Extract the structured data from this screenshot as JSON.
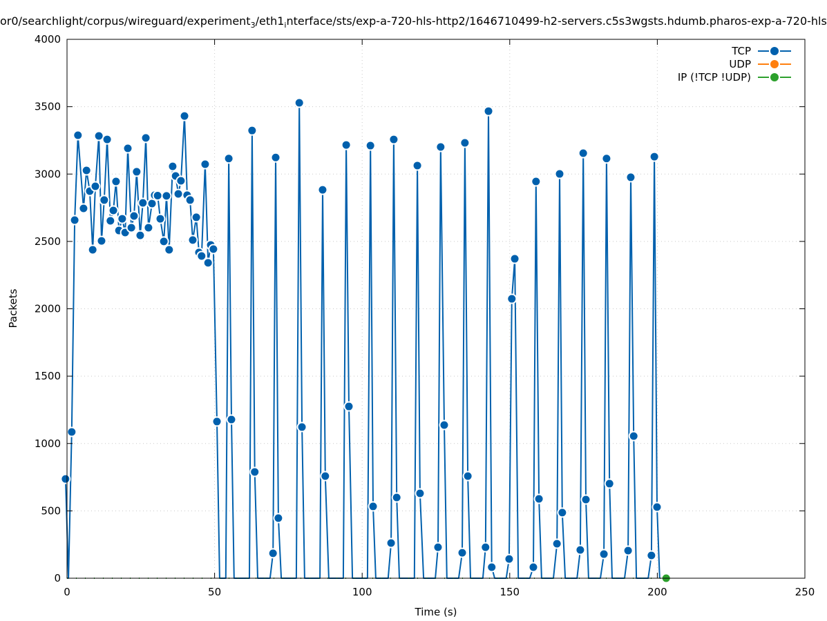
{
  "chart_data": {
    "type": "line",
    "title_parts": [
      {
        "text": "or0/searchlight/corpus/wireguard/experiment",
        "sub": false
      },
      {
        "text": "3",
        "sub": true
      },
      {
        "text": "/eth1",
        "sub": false
      },
      {
        "text": "i",
        "sub": true
      },
      {
        "text": "nterface/sts/exp-a-720-hls-http2/1646710499-h2-servers.c5s3wgsts.hdumb.pharos-exp-a-720-hls",
        "sub": false
      }
    ],
    "xlabel": "Time (s)",
    "ylabel": "Packets",
    "xlim": [
      0,
      250
    ],
    "ylim": [
      0,
      4000
    ],
    "xticks": [
      0,
      50,
      100,
      150,
      200,
      250
    ],
    "yticks": [
      0,
      500,
      1000,
      1500,
      2000,
      2500,
      3000,
      3500,
      4000
    ],
    "grid": true,
    "legend_position": "top-right",
    "series": [
      {
        "name": "TCP",
        "color": "#0060ad",
        "points": [
          [
            -0.5,
            737
          ],
          [
            0.5,
            0
          ],
          [
            1.6,
            1086
          ],
          [
            2.6,
            2658
          ],
          [
            3.7,
            3288
          ],
          [
            5.6,
            2745
          ],
          [
            6.6,
            3027
          ],
          [
            7.7,
            2873
          ],
          [
            8.7,
            2438
          ],
          [
            9.6,
            2909
          ],
          [
            10.8,
            3283
          ],
          [
            11.7,
            2504
          ],
          [
            12.6,
            2807
          ],
          [
            13.6,
            3257
          ],
          [
            14.7,
            2653
          ],
          [
            15.7,
            2730
          ],
          [
            16.6,
            2945
          ],
          [
            17.6,
            2581
          ],
          [
            18.7,
            2668
          ],
          [
            19.7,
            2566
          ],
          [
            20.6,
            3191
          ],
          [
            21.8,
            2602
          ],
          [
            22.7,
            2689
          ],
          [
            23.6,
            3017
          ],
          [
            24.8,
            2545
          ],
          [
            25.7,
            2786
          ],
          [
            26.7,
            3268
          ],
          [
            27.6,
            2602
          ],
          [
            28.8,
            2781
          ],
          [
            29.7,
            2843
          ],
          [
            30.7,
            2840
          ],
          [
            31.6,
            2668
          ],
          [
            32.8,
            2500
          ],
          [
            33.7,
            2838
          ],
          [
            34.6,
            2438
          ],
          [
            35.8,
            3057
          ],
          [
            36.8,
            2986
          ],
          [
            37.7,
            2853
          ],
          [
            38.6,
            2950
          ],
          [
            39.8,
            3431
          ],
          [
            40.7,
            2843
          ],
          [
            41.7,
            2807
          ],
          [
            42.6,
            2510
          ],
          [
            43.8,
            2679
          ],
          [
            44.7,
            2418
          ],
          [
            45.6,
            2392
          ],
          [
            46.8,
            3073
          ],
          [
            47.8,
            2341
          ],
          [
            48.7,
            2474
          ],
          [
            49.6,
            2443
          ],
          [
            50.8,
            1163
          ],
          [
            51.7,
            0
          ],
          [
            53.8,
            0
          ],
          [
            54.8,
            3115
          ],
          [
            55.7,
            1178
          ],
          [
            56.6,
            0
          ],
          [
            61.8,
            0
          ],
          [
            62.7,
            3323
          ],
          [
            63.6,
            789
          ],
          [
            64.6,
            0
          ],
          [
            68.8,
            0
          ],
          [
            69.8,
            185
          ],
          [
            70.7,
            3123
          ],
          [
            71.6,
            446
          ],
          [
            72.6,
            0
          ],
          [
            77.7,
            0
          ],
          [
            78.7,
            3529
          ],
          [
            79.6,
            1122
          ],
          [
            80.5,
            0
          ],
          [
            85.7,
            0
          ],
          [
            86.6,
            2883
          ],
          [
            87.5,
            758
          ],
          [
            88.7,
            0
          ],
          [
            93.6,
            0
          ],
          [
            94.6,
            3216
          ],
          [
            95.5,
            1275
          ],
          [
            96.7,
            0
          ],
          [
            101.8,
            0
          ],
          [
            102.8,
            3211
          ],
          [
            103.7,
            533
          ],
          [
            104.6,
            0
          ],
          [
            108.8,
            0
          ],
          [
            109.8,
            261
          ],
          [
            110.7,
            3257
          ],
          [
            111.7,
            599
          ],
          [
            112.6,
            0
          ],
          [
            117.7,
            0
          ],
          [
            118.7,
            3063
          ],
          [
            119.6,
            630
          ],
          [
            120.8,
            0
          ],
          [
            124.8,
            0
          ],
          [
            125.7,
            230
          ],
          [
            126.6,
            3201
          ],
          [
            127.8,
            1137
          ],
          [
            128.7,
            0
          ],
          [
            132.7,
            0
          ],
          [
            133.9,
            189
          ],
          [
            134.8,
            3232
          ],
          [
            135.8,
            758
          ],
          [
            136.7,
            0
          ],
          [
            140.9,
            0
          ],
          [
            141.8,
            230
          ],
          [
            142.8,
            3467
          ],
          [
            143.9,
            82
          ],
          [
            144.9,
            0
          ],
          [
            148.8,
            0
          ],
          [
            149.8,
            143
          ],
          [
            150.7,
            2074
          ],
          [
            151.7,
            2371
          ],
          [
            152.9,
            0
          ],
          [
            156.8,
            0
          ],
          [
            158.0,
            82
          ],
          [
            158.9,
            2945
          ],
          [
            159.9,
            589
          ],
          [
            160.8,
            0
          ],
          [
            164.8,
            0
          ],
          [
            166.0,
            256
          ],
          [
            166.9,
            3001
          ],
          [
            167.8,
            487
          ],
          [
            168.8,
            0
          ],
          [
            172.8,
            0
          ],
          [
            173.9,
            210
          ],
          [
            174.9,
            3155
          ],
          [
            175.8,
            584
          ],
          [
            176.7,
            0
          ],
          [
            180.7,
            0
          ],
          [
            181.9,
            179
          ],
          [
            182.8,
            3115
          ],
          [
            183.8,
            702
          ],
          [
            184.7,
            0
          ],
          [
            188.9,
            0
          ],
          [
            190.1,
            205
          ],
          [
            191.0,
            2976
          ],
          [
            192.0,
            1055
          ],
          [
            192.9,
            0
          ],
          [
            196.9,
            0
          ],
          [
            198.0,
            169
          ],
          [
            199.0,
            3129
          ],
          [
            199.9,
            528
          ],
          [
            200.8,
            0
          ]
        ]
      },
      {
        "name": "UDP",
        "color": "#ff7f0e",
        "points": []
      },
      {
        "name": "IP (!TCP  !UDP)",
        "color": "#2ca02c",
        "points": [
          [
            0,
            0
          ],
          [
            203,
            0
          ]
        ]
      }
    ]
  }
}
